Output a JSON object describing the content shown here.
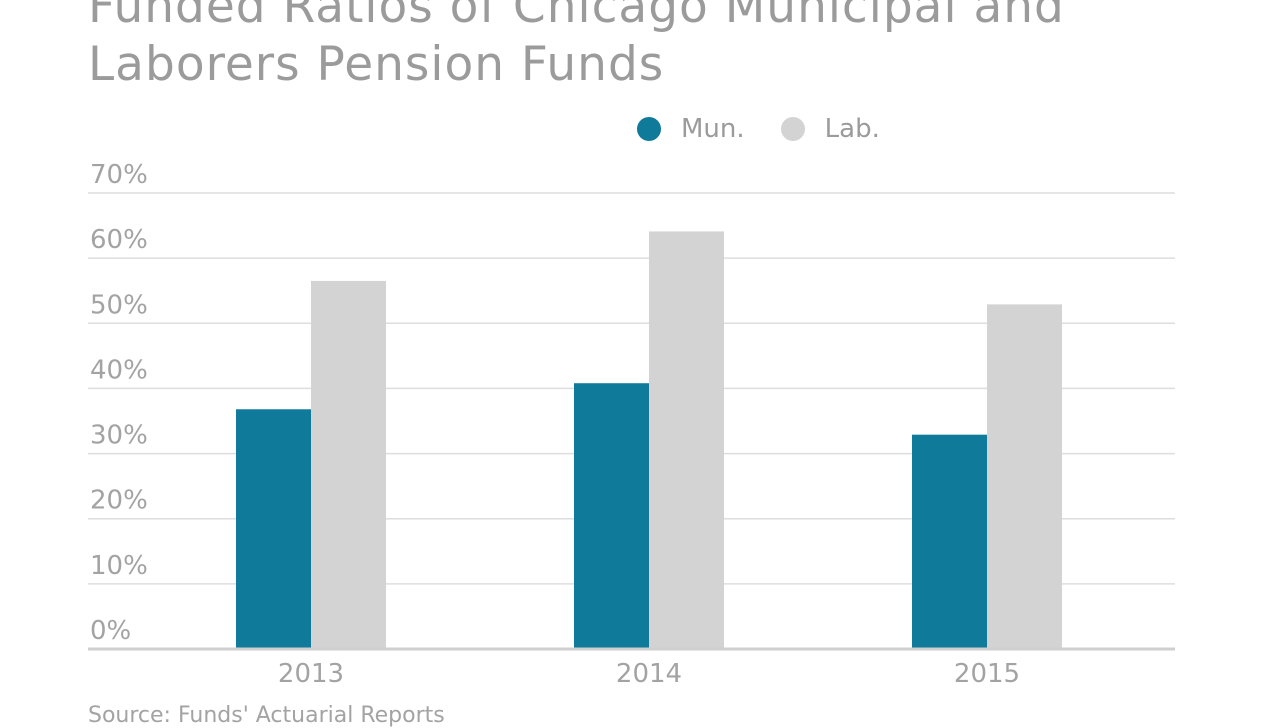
{
  "chart_data": {
    "type": "bar",
    "title_lines": [
      "Funded Ratios of Chicago Municipal and",
      "Laborers Pension Funds"
    ],
    "categories": [
      "2013",
      "2014",
      "2015"
    ],
    "series": [
      {
        "name": "Mun.",
        "values": [
          36.8,
          40.8,
          32.9
        ],
        "color": "#0f7a9a"
      },
      {
        "name": "Lab.",
        "values": [
          56.5,
          64.1,
          52.9
        ],
        "color": "#d4d3d4"
      }
    ],
    "ylim": [
      0,
      70
    ],
    "yticks": [
      0,
      10,
      20,
      30,
      40,
      50,
      60,
      70
    ],
    "ytick_labels": [
      "0%",
      "10%",
      "20%",
      "30%",
      "40%",
      "50%",
      "60%",
      "70%"
    ],
    "grid": true,
    "legend_position": "top-center",
    "source": "Source: Funds' Actuarial Reports"
  }
}
